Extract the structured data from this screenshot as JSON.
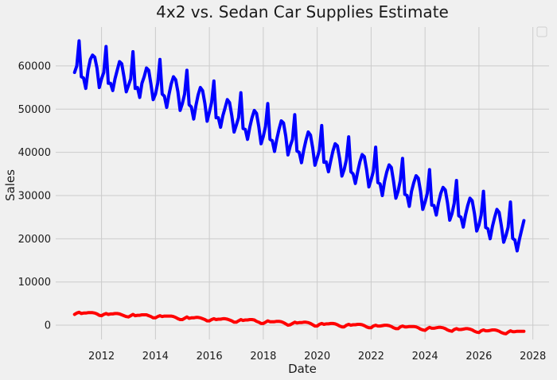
{
  "chart_data": {
    "type": "line",
    "title": "4x2 vs. Sedan Car Supplies Estimate",
    "xlabel": "Date",
    "ylabel": "Sales",
    "xlim": [
      2010.3,
      2028.6
    ],
    "ylim": [
      -3300,
      69000
    ],
    "x_ticks": [
      2012,
      2014,
      2016,
      2018,
      2020,
      2022,
      2024,
      2026,
      2028
    ],
    "x_tick_labels": [
      "2012",
      "2014",
      "2016",
      "2018",
      "2020",
      "2022",
      "2024",
      "2026",
      "2028"
    ],
    "y_ticks": [
      0,
      10000,
      20000,
      30000,
      40000,
      50000,
      60000
    ],
    "y_tick_labels": [
      "0",
      "10000",
      "20000",
      "30000",
      "40000",
      "50000",
      "60000"
    ],
    "grid": true,
    "legend": "top-right, empty",
    "colors": {
      "background": "#f0f0f0",
      "grid": "#cbcbcb"
    },
    "series": [
      {
        "color": "#0000ff",
        "x": [
          2011.0,
          2011.083,
          2011.167,
          2011.25,
          2011.333,
          2011.417,
          2011.5,
          2011.583,
          2011.667,
          2011.75,
          2011.833,
          2011.917,
          2012.0,
          2012.083,
          2012.167,
          2012.25,
          2012.333,
          2012.417,
          2012.5,
          2012.583,
          2012.667,
          2012.75,
          2012.833,
          2012.917,
          2013.0,
          2013.083,
          2013.167,
          2013.25,
          2013.333,
          2013.417,
          2013.5,
          2013.583,
          2013.667,
          2013.75,
          2013.833,
          2013.917,
          2014.0,
          2014.083,
          2014.167,
          2014.25,
          2014.333,
          2014.417,
          2014.5,
          2014.583,
          2014.667,
          2014.75,
          2014.833,
          2014.917,
          2015.0,
          2015.083,
          2015.167,
          2015.25,
          2015.333,
          2015.417,
          2015.5,
          2015.583,
          2015.667,
          2015.75,
          2015.833,
          2015.917,
          2016.0,
          2016.083,
          2016.167,
          2016.25,
          2016.333,
          2016.417,
          2016.5,
          2016.583,
          2016.667,
          2016.75,
          2016.833,
          2016.917,
          2017.0,
          2017.083,
          2017.167,
          2017.25,
          2017.333,
          2017.417,
          2017.5,
          2017.583,
          2017.667,
          2017.75,
          2017.833,
          2017.917,
          2018.0,
          2018.083,
          2018.167,
          2018.25,
          2018.333,
          2018.417,
          2018.5,
          2018.583,
          2018.667,
          2018.75,
          2018.833,
          2018.917,
          2019.0,
          2019.083,
          2019.167,
          2019.25,
          2019.333,
          2019.417,
          2019.5,
          2019.583,
          2019.667,
          2019.75,
          2019.833,
          2019.917,
          2020.0,
          2020.083,
          2020.167,
          2020.25,
          2020.333,
          2020.417,
          2020.5,
          2020.583,
          2020.667,
          2020.75,
          2020.833,
          2020.917,
          2021.0,
          2021.083,
          2021.167,
          2021.25,
          2021.333,
          2021.417,
          2021.5,
          2021.583,
          2021.667,
          2021.75,
          2021.833,
          2021.917,
          2022.0,
          2022.083,
          2022.167,
          2022.25,
          2022.333,
          2022.417,
          2022.5,
          2022.583,
          2022.667,
          2022.75,
          2022.833,
          2022.917,
          2023.0,
          2023.083,
          2023.167,
          2023.25,
          2023.333,
          2023.417,
          2023.5,
          2023.583,
          2023.667,
          2023.75,
          2023.833,
          2023.917,
          2024.0,
          2024.083,
          2024.167,
          2024.25,
          2024.333,
          2024.417,
          2024.5,
          2024.583,
          2024.667,
          2024.75,
          2024.833,
          2024.917,
          2025.0,
          2025.083,
          2025.167,
          2025.25,
          2025.333,
          2025.417,
          2025.5,
          2025.583,
          2025.667,
          2025.75,
          2025.833,
          2025.917,
          2026.0,
          2026.083,
          2026.167,
          2026.25,
          2026.333,
          2026.417,
          2026.5,
          2026.583,
          2026.667,
          2026.75,
          2026.833,
          2026.917,
          2027.0,
          2027.083,
          2027.167,
          2027.25,
          2027.333,
          2027.417,
          2027.5,
          2027.583,
          2027.667
        ],
        "y": [
          58500,
          60000,
          65800,
          57500,
          57200,
          54800,
          59000,
          61500,
          62500,
          62000,
          59500,
          55000,
          57000,
          58500,
          64500,
          56000,
          56000,
          54300,
          57000,
          59000,
          61000,
          60500,
          57500,
          54000,
          55500,
          57000,
          63300,
          54800,
          55000,
          52700,
          56000,
          57500,
          59500,
          59000,
          55800,
          52200,
          53500,
          56000,
          61500,
          53500,
          53000,
          50400,
          53300,
          55800,
          57500,
          56800,
          54000,
          49700,
          51300,
          53500,
          59000,
          51000,
          50500,
          47700,
          50800,
          53300,
          55000,
          54300,
          51300,
          47200,
          49300,
          51500,
          56500,
          48000,
          48000,
          45800,
          48500,
          50300,
          52200,
          51500,
          48500,
          44700,
          46300,
          48000,
          53800,
          45500,
          45300,
          43000,
          45800,
          48000,
          49700,
          49000,
          46000,
          42000,
          43700,
          46000,
          51300,
          43000,
          42700,
          40200,
          43000,
          45300,
          47300,
          46800,
          43800,
          39400,
          41500,
          43000,
          48700,
          40300,
          40000,
          37600,
          40500,
          42800,
          44700,
          44000,
          41000,
          37000,
          38700,
          40500,
          46200,
          37700,
          37800,
          35500,
          38000,
          40300,
          42000,
          41500,
          38500,
          34500,
          36000,
          38300,
          43600,
          35500,
          35000,
          32800,
          35500,
          37800,
          39500,
          39000,
          36000,
          32000,
          33700,
          35600,
          41200,
          33000,
          32700,
          30000,
          33300,
          35500,
          37100,
          36500,
          33300,
          29400,
          31000,
          33500,
          38600,
          30300,
          30000,
          27500,
          31000,
          33000,
          34600,
          34000,
          31000,
          26800,
          28500,
          30500,
          36000,
          27800,
          27700,
          25500,
          28300,
          30500,
          31900,
          31300,
          28300,
          24300,
          25800,
          28200,
          33500,
          25300,
          25000,
          22700,
          25500,
          27700,
          29400,
          28800,
          25800,
          21800,
          23200,
          25500,
          31000,
          22600,
          22300,
          20000,
          22900,
          25000,
          26800,
          26100,
          23000,
          19200,
          20700,
          22700,
          28500,
          20100,
          19700,
          17200,
          19800,
          22000,
          24200
        ]
      },
      {
        "color": "#ff0000",
        "x": [
          2011.0,
          2011.083,
          2011.167,
          2011.25,
          2011.333,
          2011.417,
          2011.5,
          2011.583,
          2011.667,
          2011.75,
          2011.833,
          2011.917,
          2012.0,
          2012.083,
          2012.167,
          2012.25,
          2012.333,
          2012.417,
          2012.5,
          2012.583,
          2012.667,
          2012.75,
          2012.833,
          2012.917,
          2013.0,
          2013.083,
          2013.167,
          2013.25,
          2013.333,
          2013.417,
          2013.5,
          2013.583,
          2013.667,
          2013.75,
          2013.833,
          2013.917,
          2014.0,
          2014.083,
          2014.167,
          2014.25,
          2014.333,
          2014.417,
          2014.5,
          2014.583,
          2014.667,
          2014.75,
          2014.833,
          2014.917,
          2015.0,
          2015.083,
          2015.167,
          2015.25,
          2015.333,
          2015.417,
          2015.5,
          2015.583,
          2015.667,
          2015.75,
          2015.833,
          2015.917,
          2016.0,
          2016.083,
          2016.167,
          2016.25,
          2016.333,
          2016.417,
          2016.5,
          2016.583,
          2016.667,
          2016.75,
          2016.833,
          2016.917,
          2017.0,
          2017.083,
          2017.167,
          2017.25,
          2017.333,
          2017.417,
          2017.5,
          2017.583,
          2017.667,
          2017.75,
          2017.833,
          2017.917,
          2018.0,
          2018.083,
          2018.167,
          2018.25,
          2018.333,
          2018.417,
          2018.5,
          2018.583,
          2018.667,
          2018.75,
          2018.833,
          2018.917,
          2019.0,
          2019.083,
          2019.167,
          2019.25,
          2019.333,
          2019.417,
          2019.5,
          2019.583,
          2019.667,
          2019.75,
          2019.833,
          2019.917,
          2020.0,
          2020.083,
          2020.167,
          2020.25,
          2020.333,
          2020.417,
          2020.5,
          2020.583,
          2020.667,
          2020.75,
          2020.833,
          2020.917,
          2021.0,
          2021.083,
          2021.167,
          2021.25,
          2021.333,
          2021.417,
          2021.5,
          2021.583,
          2021.667,
          2021.75,
          2021.833,
          2021.917,
          2022.0,
          2022.083,
          2022.167,
          2022.25,
          2022.333,
          2022.417,
          2022.5,
          2022.583,
          2022.667,
          2022.75,
          2022.833,
          2022.917,
          2023.0,
          2023.083,
          2023.167,
          2023.25,
          2023.333,
          2023.417,
          2023.5,
          2023.583,
          2023.667,
          2023.75,
          2023.833,
          2023.917,
          2024.0,
          2024.083,
          2024.167,
          2024.25,
          2024.333,
          2024.417,
          2024.5,
          2024.583,
          2024.667,
          2024.75,
          2024.833,
          2024.917,
          2025.0,
          2025.083,
          2025.167,
          2025.25,
          2025.333,
          2025.417,
          2025.5,
          2025.583,
          2025.667,
          2025.75,
          2025.833,
          2025.917,
          2026.0,
          2026.083,
          2026.167,
          2026.25,
          2026.333,
          2026.417,
          2026.5,
          2026.583,
          2026.667,
          2026.75,
          2026.833,
          2026.917,
          2027.0,
          2027.083,
          2027.167,
          2027.25,
          2027.333,
          2027.417,
          2027.5,
          2027.583,
          2027.667
        ],
        "y": [
          2500,
          2800,
          3000,
          2700,
          2800,
          2800,
          2900,
          2900,
          2900,
          2800,
          2600,
          2300,
          2200,
          2500,
          2700,
          2500,
          2600,
          2600,
          2700,
          2700,
          2600,
          2400,
          2200,
          2000,
          1900,
          2200,
          2500,
          2200,
          2300,
          2300,
          2400,
          2400,
          2400,
          2200,
          2000,
          1700,
          1700,
          2000,
          2200,
          2000,
          2100,
          2100,
          2100,
          2100,
          2000,
          1800,
          1500,
          1300,
          1300,
          1600,
          1900,
          1600,
          1700,
          1700,
          1800,
          1800,
          1700,
          1500,
          1300,
          1000,
          1000,
          1300,
          1500,
          1300,
          1400,
          1400,
          1500,
          1500,
          1400,
          1200,
          1000,
          700,
          700,
          1000,
          1300,
          1100,
          1200,
          1200,
          1300,
          1300,
          1200,
          900,
          700,
          400,
          400,
          700,
          1000,
          800,
          800,
          800,
          900,
          900,
          800,
          600,
          300,
          0,
          100,
          400,
          700,
          500,
          600,
          600,
          700,
          700,
          600,
          400,
          100,
          -200,
          -200,
          200,
          400,
          200,
          300,
          300,
          400,
          400,
          300,
          100,
          -200,
          -400,
          -400,
          0,
          200,
          0,
          100,
          100,
          200,
          200,
          100,
          -100,
          -400,
          -600,
          -600,
          -200,
          0,
          -200,
          -200,
          -100,
          0,
          0,
          -100,
          -300,
          -600,
          -800,
          -800,
          -400,
          -200,
          -400,
          -400,
          -300,
          -300,
          -300,
          -400,
          -600,
          -900,
          -1100,
          -1200,
          -800,
          -500,
          -700,
          -700,
          -600,
          -500,
          -500,
          -600,
          -800,
          -1100,
          -1300,
          -1400,
          -1000,
          -800,
          -1000,
          -1000,
          -900,
          -800,
          -800,
          -900,
          -1100,
          -1400,
          -1600,
          -1700,
          -1300,
          -1100,
          -1300,
          -1300,
          -1200,
          -1100,
          -1100,
          -1200,
          -1400,
          -1700,
          -1900,
          -2000,
          -1600,
          -1300,
          -1500,
          -1500,
          -1400,
          -1400,
          -1400,
          -1400
        ]
      }
    ]
  }
}
